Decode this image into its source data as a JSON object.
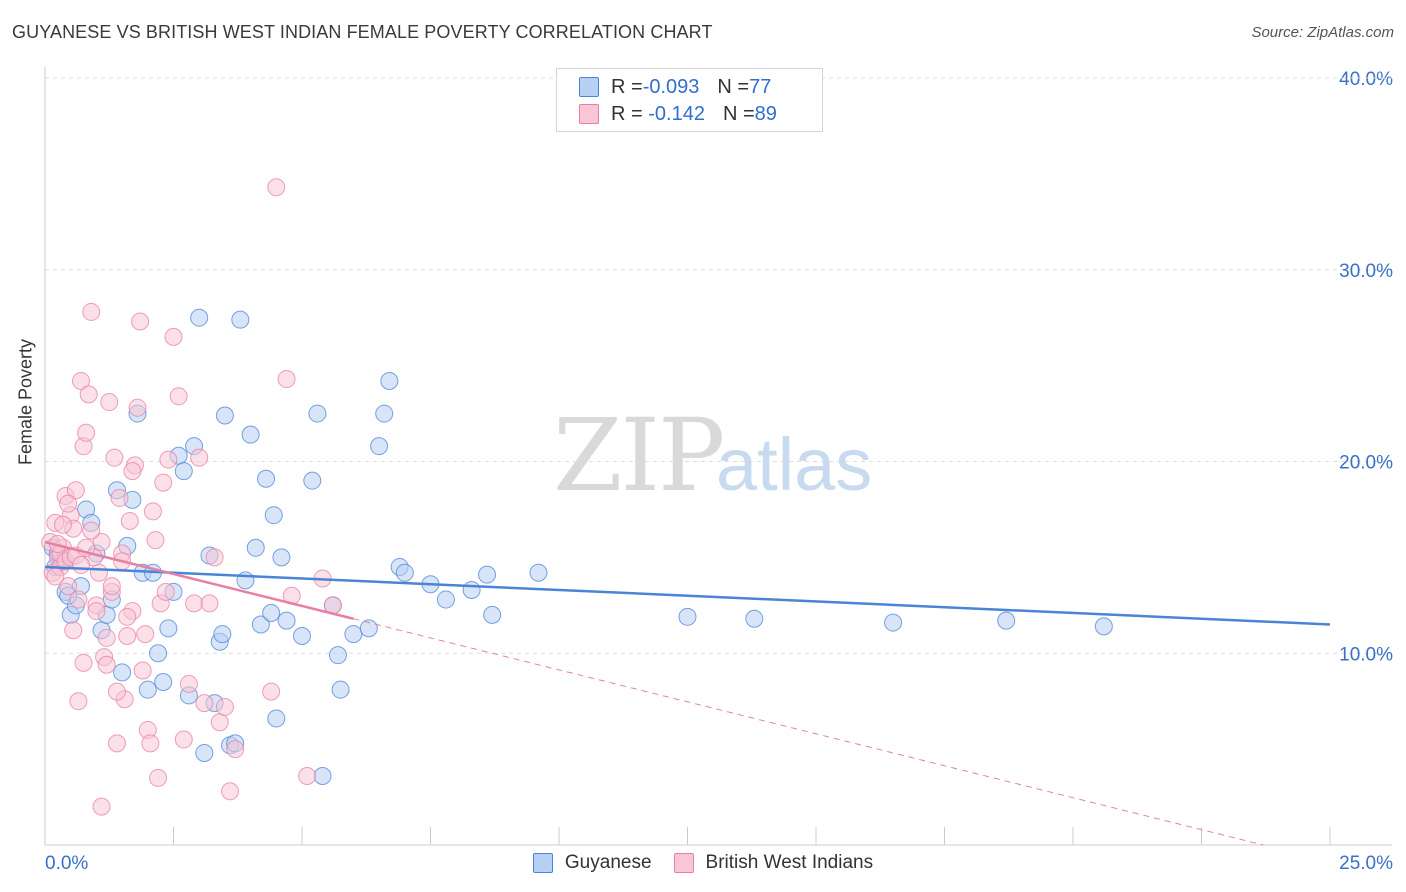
{
  "title": "GUYANESE VS BRITISH WEST INDIAN FEMALE POVERTY CORRELATION CHART",
  "source": "Source: ZipAtlas.com",
  "watermark": {
    "zip": "ZIP",
    "atlas": "atlas"
  },
  "legend_stats": [
    {
      "r_label": "R = ",
      "r_value": "-0.093",
      "n_label": "N = ",
      "n_value": "77",
      "color": "#4a84d6",
      "fill": "#b8d0f3"
    },
    {
      "r_label": "R = ",
      "r_value": " -0.142",
      "n_label": "N = ",
      "n_value": "89",
      "color": "#e87fa3",
      "fill": "#f8c6d6"
    }
  ],
  "chart_data": {
    "type": "scatter",
    "title": "GUYANESE VS BRITISH WEST INDIAN FEMALE POVERTY CORRELATION CHART",
    "xlabel": "",
    "ylabel": "Female Poverty",
    "xlim": [
      0,
      25
    ],
    "ylim": [
      0,
      40
    ],
    "x_tick_labels": [
      "0.0%",
      "25.0%"
    ],
    "y_ticks": [
      10,
      20,
      30,
      40
    ],
    "y_tick_labels": [
      "10.0%",
      "20.0%",
      "30.0%",
      "40.0%"
    ],
    "grid": true,
    "legend_position": "bottom-center",
    "series": [
      {
        "name": "Guyanese",
        "color": "#4a84d6",
        "fill": "#b8d0f3",
        "trend": {
          "x": [
            0,
            25
          ],
          "y": [
            14.5,
            11.5
          ],
          "style": "solid"
        },
        "points": [
          [
            0.2,
            14.5
          ],
          [
            0.3,
            15.0
          ],
          [
            0.4,
            13.2
          ],
          [
            0.5,
            12.0
          ],
          [
            0.6,
            12.5
          ],
          [
            0.7,
            13.5
          ],
          [
            0.8,
            17.5
          ],
          [
            0.9,
            16.8
          ],
          [
            1.0,
            15.2
          ],
          [
            1.1,
            11.2
          ],
          [
            1.2,
            12.0
          ],
          [
            1.3,
            12.8
          ],
          [
            1.4,
            18.5
          ],
          [
            1.5,
            9.0
          ],
          [
            1.6,
            15.6
          ],
          [
            1.7,
            18.0
          ],
          [
            1.8,
            22.5
          ],
          [
            1.9,
            14.2
          ],
          [
            2.0,
            8.1
          ],
          [
            2.1,
            14.2
          ],
          [
            2.2,
            10.0
          ],
          [
            2.3,
            8.5
          ],
          [
            2.4,
            11.3
          ],
          [
            2.5,
            13.2
          ],
          [
            2.6,
            20.3
          ],
          [
            2.7,
            19.5
          ],
          [
            2.8,
            7.8
          ],
          [
            2.9,
            20.8
          ],
          [
            3.0,
            27.5
          ],
          [
            3.1,
            4.8
          ],
          [
            3.2,
            15.1
          ],
          [
            3.3,
            7.4
          ],
          [
            3.4,
            10.6
          ],
          [
            3.45,
            11.0
          ],
          [
            3.5,
            22.4
          ],
          [
            3.6,
            5.2
          ],
          [
            3.7,
            5.3
          ],
          [
            3.8,
            27.4
          ],
          [
            3.9,
            13.8
          ],
          [
            4.0,
            21.4
          ],
          [
            4.1,
            15.5
          ],
          [
            4.2,
            11.5
          ],
          [
            4.3,
            19.1
          ],
          [
            4.4,
            12.1
          ],
          [
            4.45,
            17.2
          ],
          [
            4.5,
            6.6
          ],
          [
            4.6,
            15.0
          ],
          [
            4.7,
            11.7
          ],
          [
            5.0,
            10.9
          ],
          [
            5.2,
            19.0
          ],
          [
            5.3,
            22.5
          ],
          [
            5.4,
            3.6
          ],
          [
            5.6,
            12.5
          ],
          [
            5.7,
            9.9
          ],
          [
            5.75,
            8.1
          ],
          [
            6.0,
            11.0
          ],
          [
            6.3,
            11.3
          ],
          [
            6.5,
            20.8
          ],
          [
            6.6,
            22.5
          ],
          [
            6.7,
            24.2
          ],
          [
            6.9,
            14.5
          ],
          [
            7.0,
            14.2
          ],
          [
            7.5,
            13.6
          ],
          [
            7.8,
            12.8
          ],
          [
            8.3,
            13.3
          ],
          [
            8.6,
            14.1
          ],
          [
            8.7,
            12.0
          ],
          [
            9.6,
            14.2
          ],
          [
            12.5,
            11.9
          ],
          [
            13.8,
            11.8
          ],
          [
            16.5,
            11.6
          ],
          [
            18.7,
            11.7
          ],
          [
            20.6,
            11.4
          ],
          [
            0.15,
            15.5
          ],
          [
            0.35,
            14.8
          ],
          [
            0.25,
            15.2
          ],
          [
            0.45,
            13.0
          ]
        ]
      },
      {
        "name": "British West Indians",
        "color": "#e87fa3",
        "fill": "#f8c6d6",
        "trend": {
          "x": [
            0,
            6
          ],
          "y": [
            15.8,
            11.8
          ],
          "style": "solid",
          "extension": {
            "x": [
              6,
              23.7
            ],
            "y": [
              11.8,
              0.0
            ],
            "style": "dashed"
          }
        },
        "points": [
          [
            0.1,
            15.8
          ],
          [
            0.15,
            14.2
          ],
          [
            0.2,
            16.8
          ],
          [
            0.25,
            15.0
          ],
          [
            0.3,
            14.5
          ],
          [
            0.35,
            15.5
          ],
          [
            0.4,
            18.2
          ],
          [
            0.45,
            13.5
          ],
          [
            0.5,
            17.2
          ],
          [
            0.55,
            16.5
          ],
          [
            0.6,
            18.5
          ],
          [
            0.65,
            12.8
          ],
          [
            0.7,
            24.2
          ],
          [
            0.75,
            20.8
          ],
          [
            0.8,
            21.5
          ],
          [
            0.85,
            23.5
          ],
          [
            0.9,
            27.8
          ],
          [
            0.95,
            15.0
          ],
          [
            1.0,
            12.5
          ],
          [
            1.05,
            14.2
          ],
          [
            1.1,
            15.8
          ],
          [
            1.15,
            9.8
          ],
          [
            1.2,
            9.4
          ],
          [
            1.25,
            23.1
          ],
          [
            1.3,
            13.2
          ],
          [
            1.35,
            20.2
          ],
          [
            1.4,
            5.3
          ],
          [
            1.45,
            18.1
          ],
          [
            1.5,
            15.2
          ],
          [
            1.55,
            7.6
          ],
          [
            1.6,
            10.9
          ],
          [
            1.65,
            16.9
          ],
          [
            1.7,
            12.2
          ],
          [
            1.75,
            19.8
          ],
          [
            1.8,
            22.8
          ],
          [
            1.85,
            27.3
          ],
          [
            1.9,
            9.1
          ],
          [
            1.95,
            11.0
          ],
          [
            2.0,
            6.0
          ],
          [
            2.05,
            5.3
          ],
          [
            2.1,
            17.4
          ],
          [
            2.15,
            15.9
          ],
          [
            2.2,
            3.5
          ],
          [
            2.25,
            12.6
          ],
          [
            2.3,
            18.9
          ],
          [
            2.35,
            13.2
          ],
          [
            2.4,
            20.1
          ],
          [
            2.5,
            26.5
          ],
          [
            2.6,
            23.4
          ],
          [
            2.7,
            5.5
          ],
          [
            2.8,
            8.4
          ],
          [
            2.9,
            12.6
          ],
          [
            3.0,
            20.2
          ],
          [
            3.1,
            7.4
          ],
          [
            3.2,
            12.6
          ],
          [
            3.3,
            15.0
          ],
          [
            3.4,
            6.4
          ],
          [
            3.5,
            7.2
          ],
          [
            3.6,
            2.8
          ],
          [
            3.7,
            5.0
          ],
          [
            4.4,
            8.0
          ],
          [
            4.5,
            34.3
          ],
          [
            4.7,
            24.3
          ],
          [
            4.8,
            13.0
          ],
          [
            5.1,
            3.6
          ],
          [
            5.4,
            13.9
          ],
          [
            5.6,
            12.5
          ],
          [
            0.3,
            15.2
          ],
          [
            0.4,
            14.8
          ],
          [
            0.5,
            15.0
          ],
          [
            0.6,
            15.1
          ],
          [
            0.7,
            14.6
          ],
          [
            0.8,
            15.5
          ],
          [
            0.9,
            16.4
          ],
          [
            1.0,
            12.2
          ],
          [
            1.1,
            2.0
          ],
          [
            1.2,
            10.8
          ],
          [
            1.3,
            13.5
          ],
          [
            1.4,
            8.0
          ],
          [
            1.5,
            14.8
          ],
          [
            1.6,
            11.9
          ],
          [
            1.7,
            19.5
          ],
          [
            0.2,
            14.0
          ],
          [
            0.25,
            15.7
          ],
          [
            0.35,
            16.7
          ],
          [
            0.45,
            17.8
          ],
          [
            0.55,
            11.2
          ],
          [
            0.65,
            7.5
          ],
          [
            0.75,
            9.5
          ]
        ]
      }
    ]
  }
}
